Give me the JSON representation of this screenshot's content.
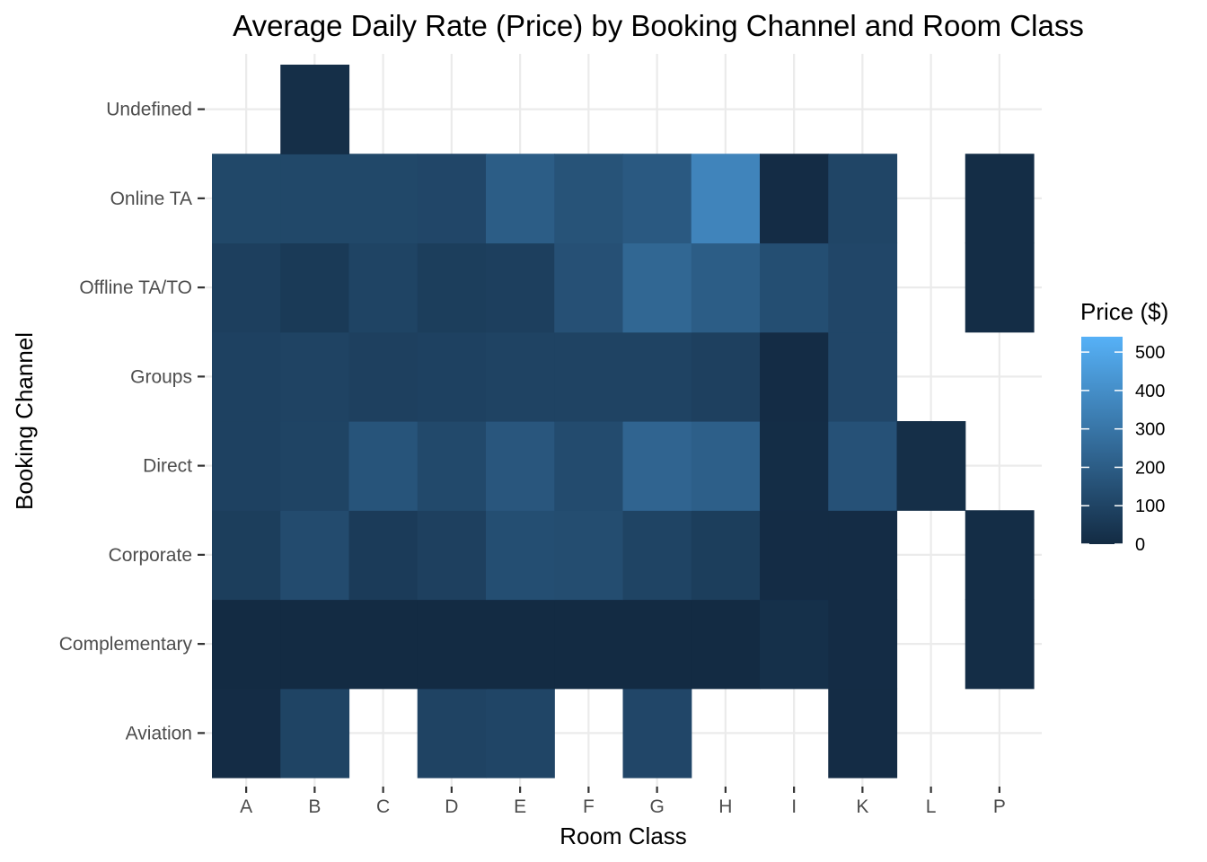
{
  "chart_data": {
    "type": "heatmap",
    "title": "Average Daily Rate (Price) by Booking Channel and Room Class",
    "xlabel": "Room Class",
    "ylabel": "Booking Channel",
    "x_categories": [
      "A",
      "B",
      "C",
      "D",
      "E",
      "F",
      "G",
      "H",
      "I",
      "K",
      "L",
      "P"
    ],
    "y_categories": [
      "Aviation",
      "Complementary",
      "Corporate",
      "Direct",
      "Groups",
      "Offline TA/TO",
      "Online TA",
      "Undefined"
    ],
    "values": [
      [
        5,
        100,
        null,
        95,
        105,
        null,
        110,
        null,
        null,
        5,
        null,
        null
      ],
      [
        0,
        0,
        0,
        0,
        0,
        0,
        0,
        0,
        20,
        5,
        null,
        10
      ],
      [
        75,
        130,
        65,
        85,
        140,
        135,
        100,
        75,
        5,
        5,
        null,
        10
      ],
      [
        90,
        100,
        165,
        120,
        175,
        130,
        230,
        210,
        10,
        155,
        15,
        null
      ],
      [
        90,
        95,
        85,
        90,
        95,
        95,
        95,
        85,
        5,
        110,
        null,
        null
      ],
      [
        80,
        60,
        100,
        75,
        80,
        150,
        240,
        200,
        140,
        110,
        null,
        10
      ],
      [
        115,
        115,
        115,
        110,
        200,
        160,
        185,
        360,
        5,
        105,
        null,
        10
      ],
      [
        null,
        15,
        null,
        null,
        null,
        null,
        null,
        null,
        null,
        null,
        null,
        null
      ]
    ],
    "legend": {
      "title": "Price ($)",
      "ticks": [
        0,
        100,
        200,
        300,
        400,
        500
      ],
      "range": [
        0,
        540
      ],
      "low_color": "#132B43",
      "high_color": "#56B1F7",
      "placement": "right"
    },
    "grid": true
  }
}
